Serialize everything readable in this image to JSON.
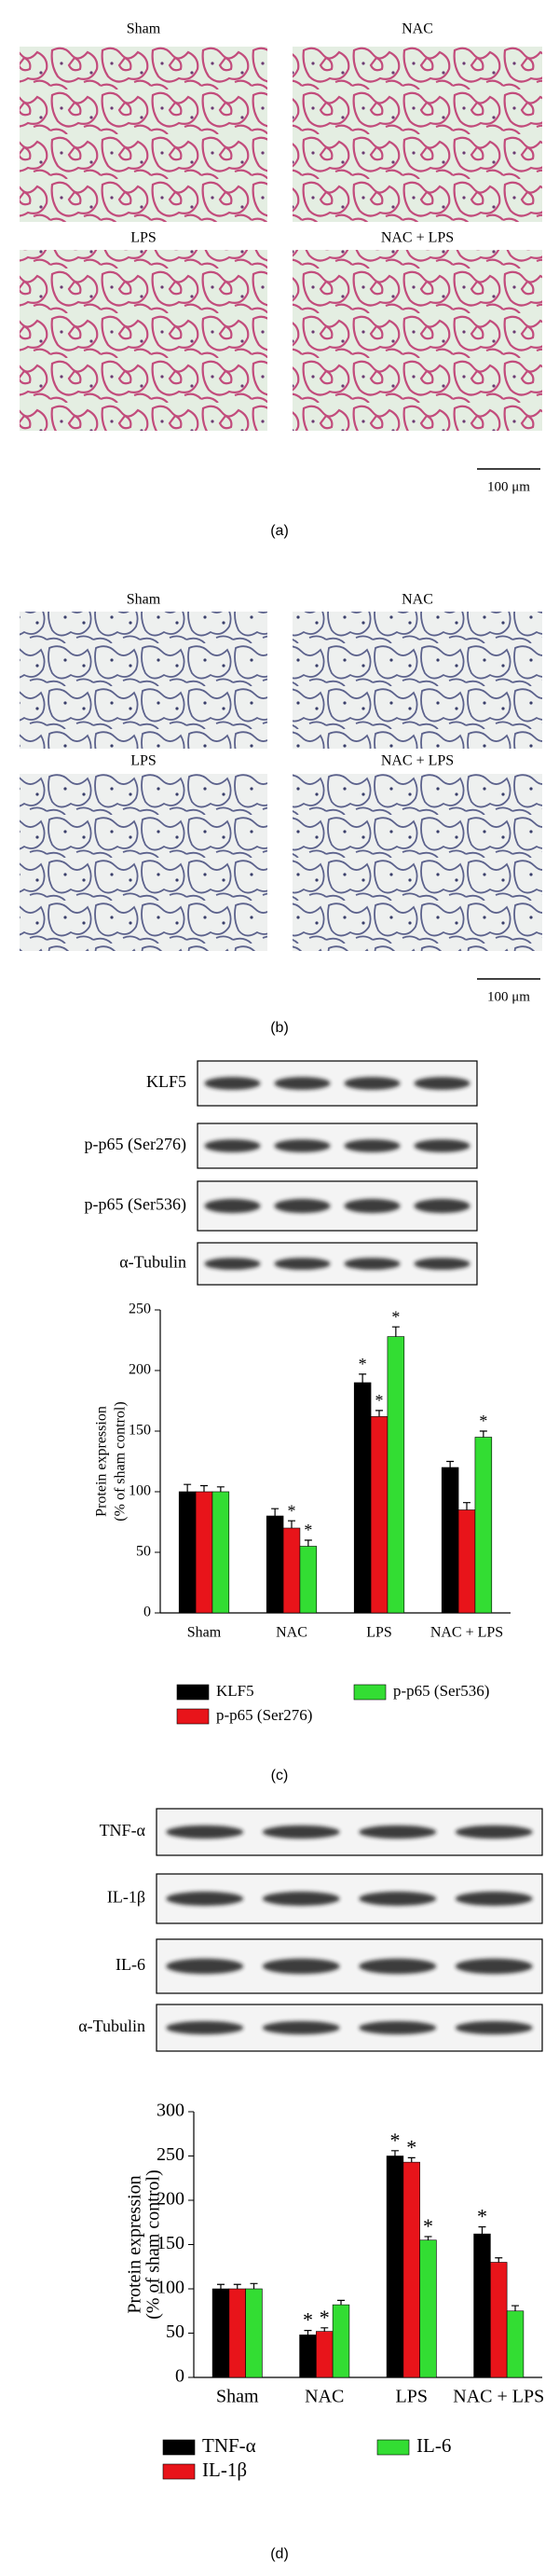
{
  "panel_a": {
    "images": [
      "Sham",
      "NAC",
      "LPS",
      "NAC + LPS"
    ],
    "scale_bar": "100 μm",
    "caption": "(a)"
  },
  "panel_b": {
    "images": [
      "Sham",
      "NAC",
      "LPS",
      "NAC + LPS"
    ],
    "scale_bar": "100 μm",
    "caption": "(b)"
  },
  "panel_c": {
    "blots": [
      "KLF5",
      "p-p65 (Ser276)",
      "p-p65 (Ser536)",
      "α-Tubulin"
    ],
    "caption": "(c)"
  },
  "panel_d": {
    "blots": [
      "TNF-α",
      "IL-1β",
      "IL-6",
      "α-Tubulin"
    ],
    "caption": "(d)"
  },
  "chart_data": [
    {
      "type": "bar",
      "ylabel": [
        "Protein expression",
        "(% of sham control)"
      ],
      "categories": [
        "Sham",
        "NAC",
        "LPS",
        "NAC + LPS"
      ],
      "series": [
        {
          "name": "KLF5",
          "color": "#000000",
          "values": [
            100,
            80,
            190,
            120
          ],
          "errors": [
            6,
            6,
            7,
            5
          ],
          "significance": [
            null,
            null,
            "*",
            null
          ]
        },
        {
          "name": "p-p65 (Ser276)",
          "color": "#e8141a",
          "values": [
            100,
            70,
            162,
            85
          ],
          "errors": [
            5,
            6,
            5,
            6
          ],
          "significance": [
            null,
            "*",
            "*",
            null
          ]
        },
        {
          "name": "p-p65 (Ser536)",
          "color": "#33dd33",
          "values": [
            100,
            55,
            228,
            145
          ],
          "errors": [
            4,
            5,
            8,
            5
          ],
          "significance": [
            null,
            "*",
            "*",
            "*"
          ]
        }
      ],
      "ylim": [
        0,
        250
      ],
      "yticks": [
        0,
        50,
        100,
        150,
        200,
        250
      ]
    },
    {
      "type": "bar",
      "ylabel": [
        "Protein expression",
        "(% of sham control)"
      ],
      "categories": [
        "Sham",
        "NAC",
        "LPS",
        "NAC + LPS"
      ],
      "series": [
        {
          "name": "TNF-α",
          "color": "#000000",
          "values": [
            100,
            48,
            250,
            162
          ],
          "errors": [
            5,
            5,
            6,
            8
          ],
          "significance": [
            null,
            "*",
            "*",
            "*"
          ]
        },
        {
          "name": "IL-1β",
          "color": "#e8141a",
          "values": [
            100,
            52,
            243,
            130
          ],
          "errors": [
            5,
            4,
            5,
            5
          ],
          "significance": [
            null,
            "*",
            "*",
            null
          ]
        },
        {
          "name": "IL-6",
          "color": "#33dd33",
          "values": [
            100,
            82,
            155,
            75
          ],
          "errors": [
            6,
            5,
            4,
            6
          ],
          "significance": [
            null,
            null,
            "*",
            null
          ]
        }
      ],
      "ylim": [
        0,
        300
      ],
      "yticks": [
        0,
        50,
        100,
        150,
        200,
        250,
        300
      ]
    }
  ]
}
